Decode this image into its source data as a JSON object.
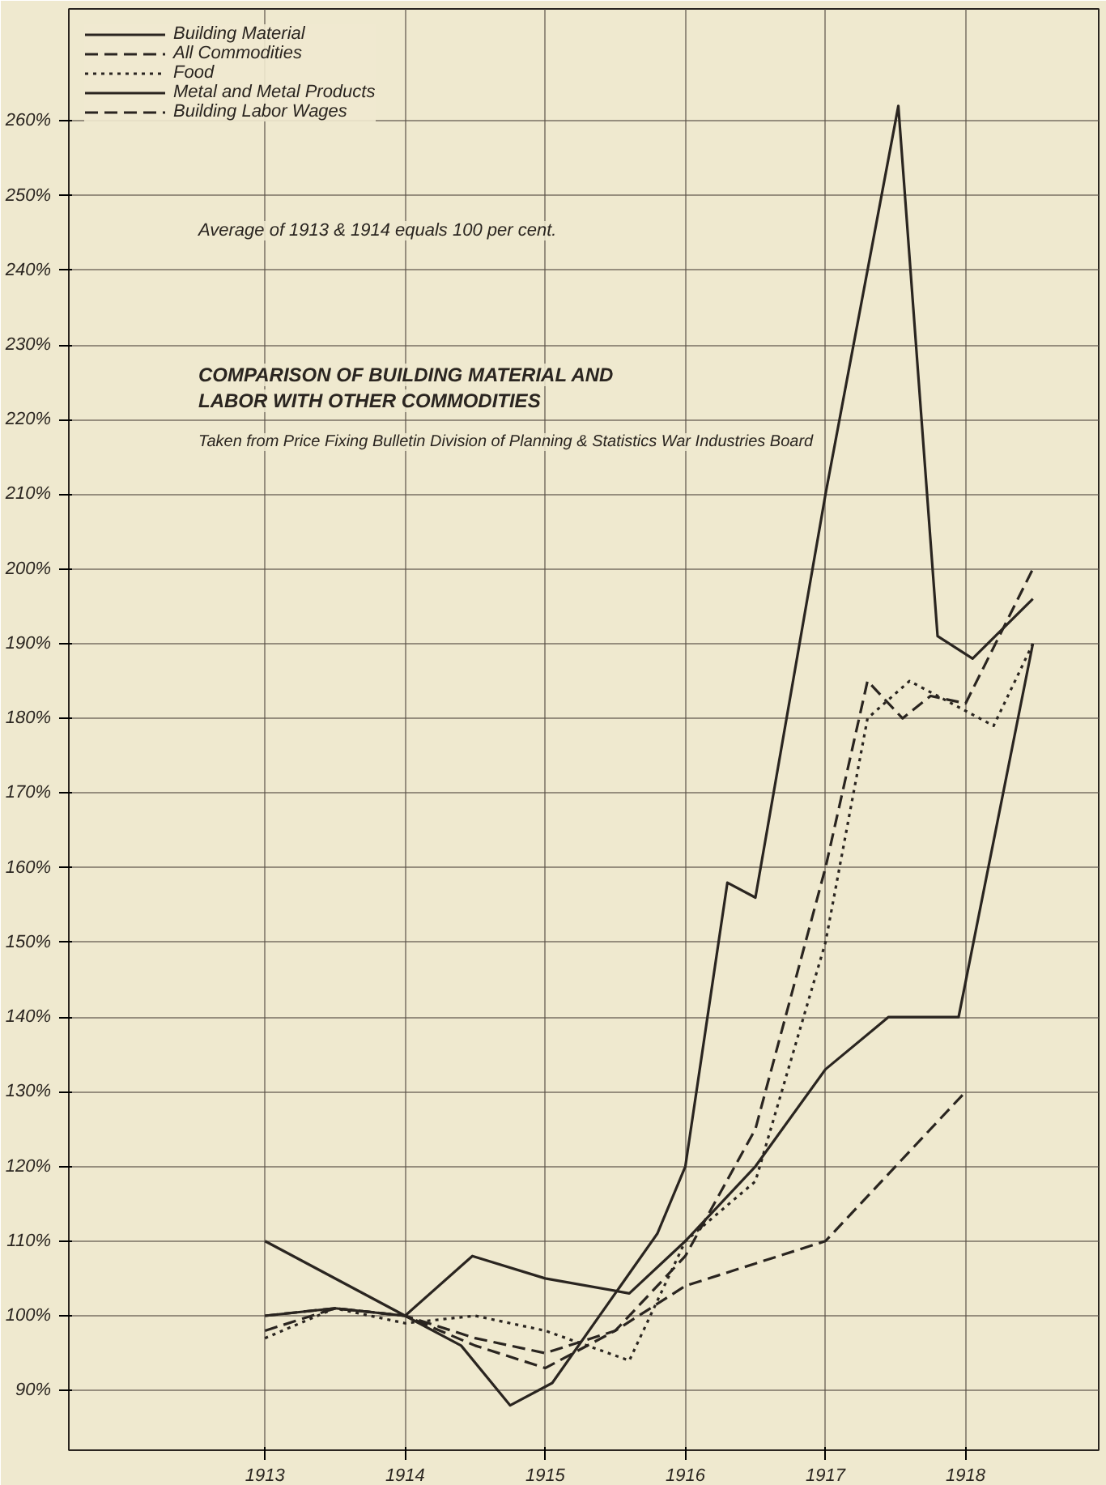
{
  "chart_data": {
    "type": "line",
    "title": "COMPARISON OF BUILDING MATERIAL AND LABOR WITH OTHER COMMODITIES",
    "subtitle": "Taken from Price Fixing Bulletin Division of Planning & Statistics War Industries Board",
    "annotations": [
      "Average of 1913 & 1914 equals 100 per cent."
    ],
    "xlim": [
      1911.6,
      1918.95
    ],
    "ylim": [
      82,
      275
    ],
    "xticks": [
      1913,
      1914,
      1915,
      1916,
      1917,
      1918
    ],
    "yticks": [
      {
        "value": 90,
        "label": "90%"
      },
      {
        "value": 100,
        "label": "100%"
      },
      {
        "value": 110,
        "label": "110%"
      },
      {
        "value": 120,
        "label": "120%"
      },
      {
        "value": 130,
        "label": "130%"
      },
      {
        "value": 140,
        "label": "140%"
      },
      {
        "value": 150,
        "label": "150%"
      },
      {
        "value": 160,
        "label": "160%"
      },
      {
        "value": 170,
        "label": "170%"
      },
      {
        "value": 180,
        "label": "180%"
      },
      {
        "value": 190,
        "label": "190%"
      },
      {
        "value": 200,
        "label": "200%"
      },
      {
        "value": 210,
        "label": "210%"
      },
      {
        "value": 220,
        "label": "220%"
      },
      {
        "value": 230,
        "label": "230%"
      },
      {
        "value": 240,
        "label": "240%"
      },
      {
        "value": 250,
        "label": "250%"
      },
      {
        "value": 260,
        "label": "260%"
      }
    ],
    "grid": true,
    "legend": "top left",
    "marker": "none",
    "series": [
      {
        "name": "Building Material",
        "color": "#2a2520",
        "line_style": "solid",
        "x": [
          1913,
          1914,
          1914.48,
          1915,
          1915.6,
          1916,
          1916.5,
          1917,
          1917.45,
          1917.95,
          1918.48
        ],
        "values": [
          110,
          100,
          108,
          105,
          103,
          110,
          120,
          133,
          140,
          140,
          190
        ]
      },
      {
        "name": "All Commodities",
        "color": "#2a2520",
        "line_style": "dashed",
        "x": [
          1913,
          1913.5,
          1914,
          1914.5,
          1915,
          1915.5,
          1916,
          1916.5,
          1917,
          1917.3,
          1917.55,
          1917.75,
          1918,
          1918.48
        ],
        "values": [
          98,
          101,
          100,
          96,
          93,
          98,
          108,
          125,
          160,
          185,
          180,
          183,
          182,
          200
        ]
      },
      {
        "name": "Food",
        "color": "#2a2520",
        "line_style": "dotted",
        "x": [
          1913,
          1913.5,
          1914,
          1914.5,
          1915,
          1915.6,
          1916,
          1916.5,
          1917,
          1917.3,
          1917.6,
          1917.8,
          1918.2,
          1918.48
        ],
        "values": [
          97,
          101,
          99,
          100,
          98,
          94,
          110,
          118,
          150,
          180,
          185,
          183,
          179,
          190
        ]
      },
      {
        "name": "Metal and Metal Products",
        "color": "#2a2520",
        "line_style": "solid",
        "x": [
          1913,
          1913.5,
          1914,
          1914.4,
          1914.75,
          1915.05,
          1915.8,
          1916,
          1916.3,
          1916.5,
          1917,
          1917.52,
          1917.8,
          1918.05,
          1918.48
        ],
        "values": [
          100,
          101,
          100,
          96,
          88,
          91,
          111,
          120,
          158,
          156,
          210,
          262,
          191,
          188,
          196
        ]
      },
      {
        "name": "Building Labor Wages",
        "color": "#2a2520",
        "line_style": "dashed",
        "x": [
          1913,
          1913.5,
          1914,
          1914.5,
          1915,
          1915.5,
          1916,
          1916.5,
          1917,
          1918
        ],
        "values": [
          100,
          101,
          100,
          97,
          95,
          98,
          104,
          107,
          110,
          130
        ]
      }
    ]
  }
}
